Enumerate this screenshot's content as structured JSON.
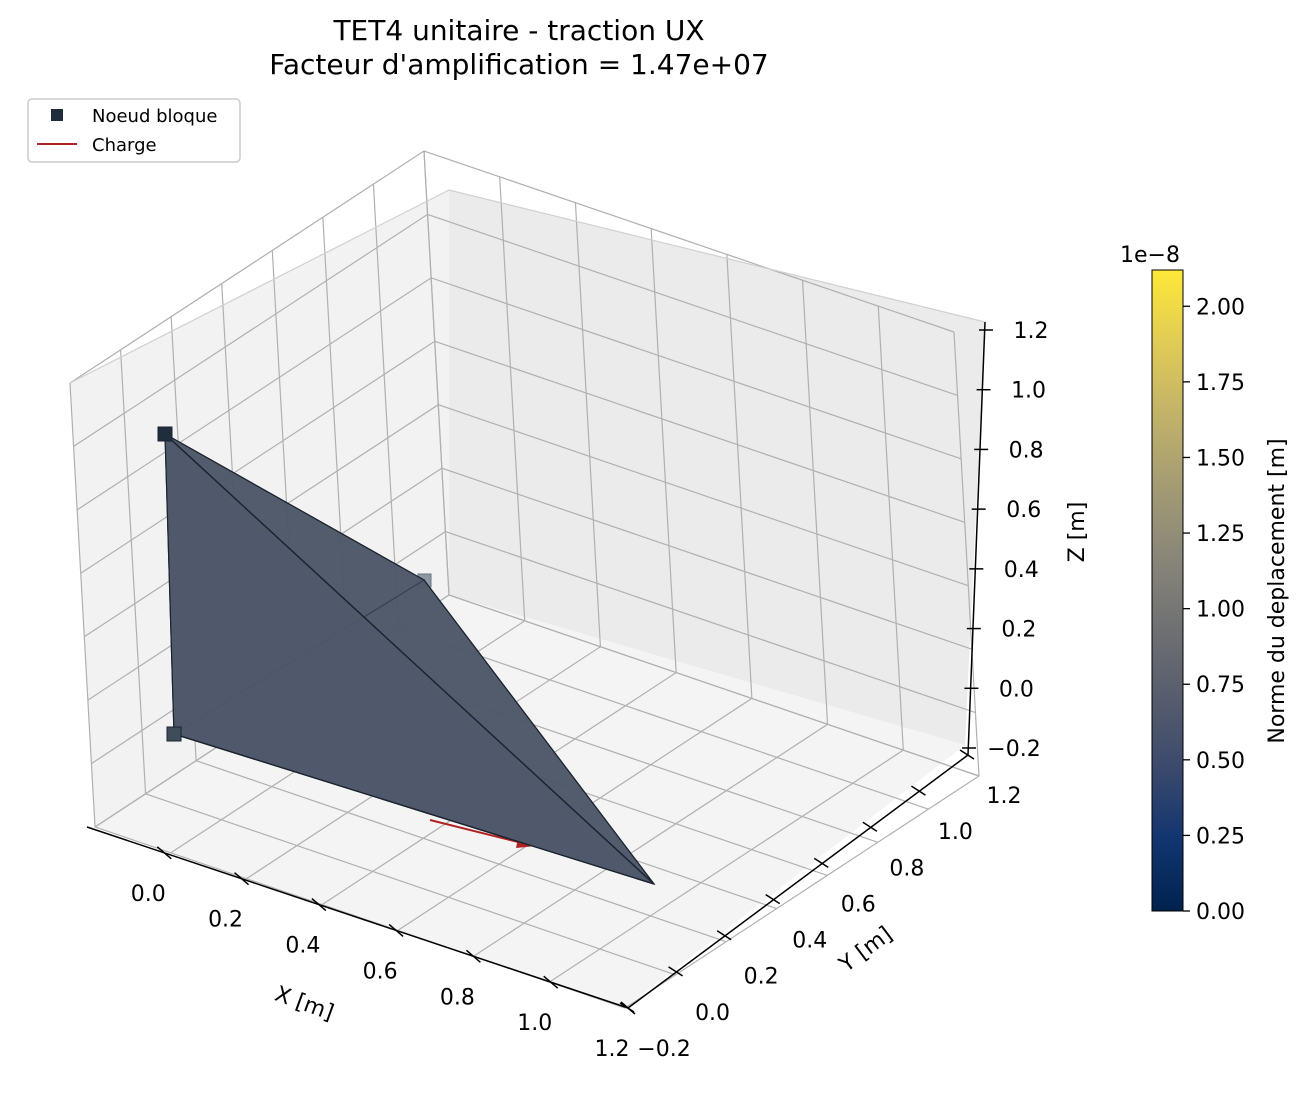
{
  "chart_data": {
    "type": "3d-surface",
    "title": "TET4 unitaire - traction UX",
    "subtitle": "Facteur d'amplification = 1.47e+07",
    "axes": {
      "x": {
        "label": "X [m]",
        "ticks": [
          "0.0",
          "0.2",
          "0.4",
          "0.6",
          "0.8",
          "1.0",
          "1.2"
        ],
        "range": [
          -0.2,
          1.2
        ]
      },
      "y": {
        "label": "Y [m]",
        "ticks": [
          "−0.2",
          "0.0",
          "0.2",
          "0.4",
          "0.6",
          "0.8",
          "1.0",
          "1.2"
        ],
        "range": [
          -0.2,
          1.2
        ]
      },
      "z": {
        "label": "Z [m]",
        "ticks": [
          "−0.2",
          "0.0",
          "0.2",
          "0.4",
          "0.6",
          "0.8",
          "1.0",
          "1.2"
        ],
        "range": [
          -0.2,
          1.2
        ]
      }
    },
    "grid": true,
    "legend": {
      "placement": "top-left",
      "entries": [
        {
          "label": "Noeud bloque",
          "marker": "square",
          "color": "#1f2d3d"
        },
        {
          "label": "Charge",
          "marker": "line",
          "color": "#b22222"
        }
      ]
    },
    "colorbar": {
      "label": "Norme du deplacement [m]",
      "exponent": "1e−8",
      "ticks": [
        "0.00",
        "0.25",
        "0.50",
        "0.75",
        "1.00",
        "1.25",
        "1.50",
        "1.75",
        "2.00"
      ],
      "range": [
        0,
        2.12
      ],
      "colormap": "cividis",
      "colors": [
        "#00224e",
        "#123570",
        "#3b496c",
        "#575d6d",
        "#707173",
        "#8a8779",
        "#a59c74",
        "#c3b369",
        "#e1cc55",
        "#fee838"
      ]
    },
    "mesh": {
      "face_color": "#4f586a",
      "edge_color": "#1c2430",
      "nodes": [
        {
          "x": 0.0,
          "y": 0.0,
          "z": 0.0
        },
        {
          "x": 1.0,
          "y": 0.0,
          "z": 0.0
        },
        {
          "x": 0.0,
          "y": 1.0,
          "z": 0.0
        },
        {
          "x": 0.0,
          "y": 0.0,
          "z": 1.0
        }
      ],
      "blocked_nodes": [
        0,
        2,
        3
      ],
      "load_node": 1
    }
  }
}
